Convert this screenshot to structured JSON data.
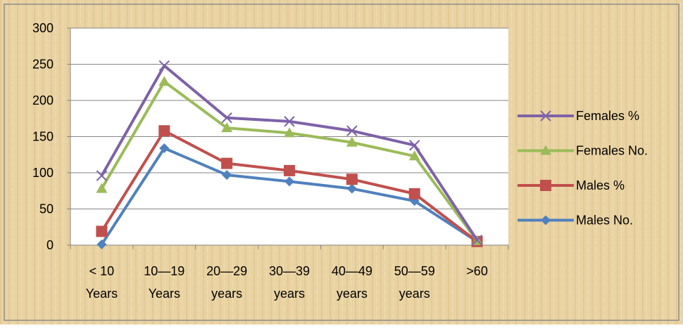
{
  "chart_data": {
    "type": "line",
    "categories": [
      "< 10 Years",
      "10—19 Years",
      "20—29 years",
      "30—39 years",
      "40—49 years",
      "50—59 years",
      ">60"
    ],
    "series": [
      {
        "name": "Females %",
        "color": "#7e62a8",
        "marker": "x",
        "values": [
          96,
          248,
          176,
          171,
          158,
          138,
          7
        ]
      },
      {
        "name": "Females No.",
        "color": "#9bbb59",
        "marker": "triangle",
        "values": [
          78,
          226,
          162,
          155,
          142,
          123,
          6
        ]
      },
      {
        "name": "Males %",
        "color": "#c0504d",
        "marker": "square",
        "values": [
          19,
          158,
          113,
          103,
          91,
          71,
          5
        ]
      },
      {
        "name": "Males No.",
        "color": "#4f81bd",
        "marker": "diamond",
        "values": [
          1,
          134,
          97,
          88,
          78,
          61,
          5
        ]
      }
    ],
    "ylim": [
      0,
      300
    ],
    "yticks": [
      0,
      50,
      100,
      150,
      200,
      250,
      300
    ],
    "grid": true,
    "legend": "right"
  }
}
